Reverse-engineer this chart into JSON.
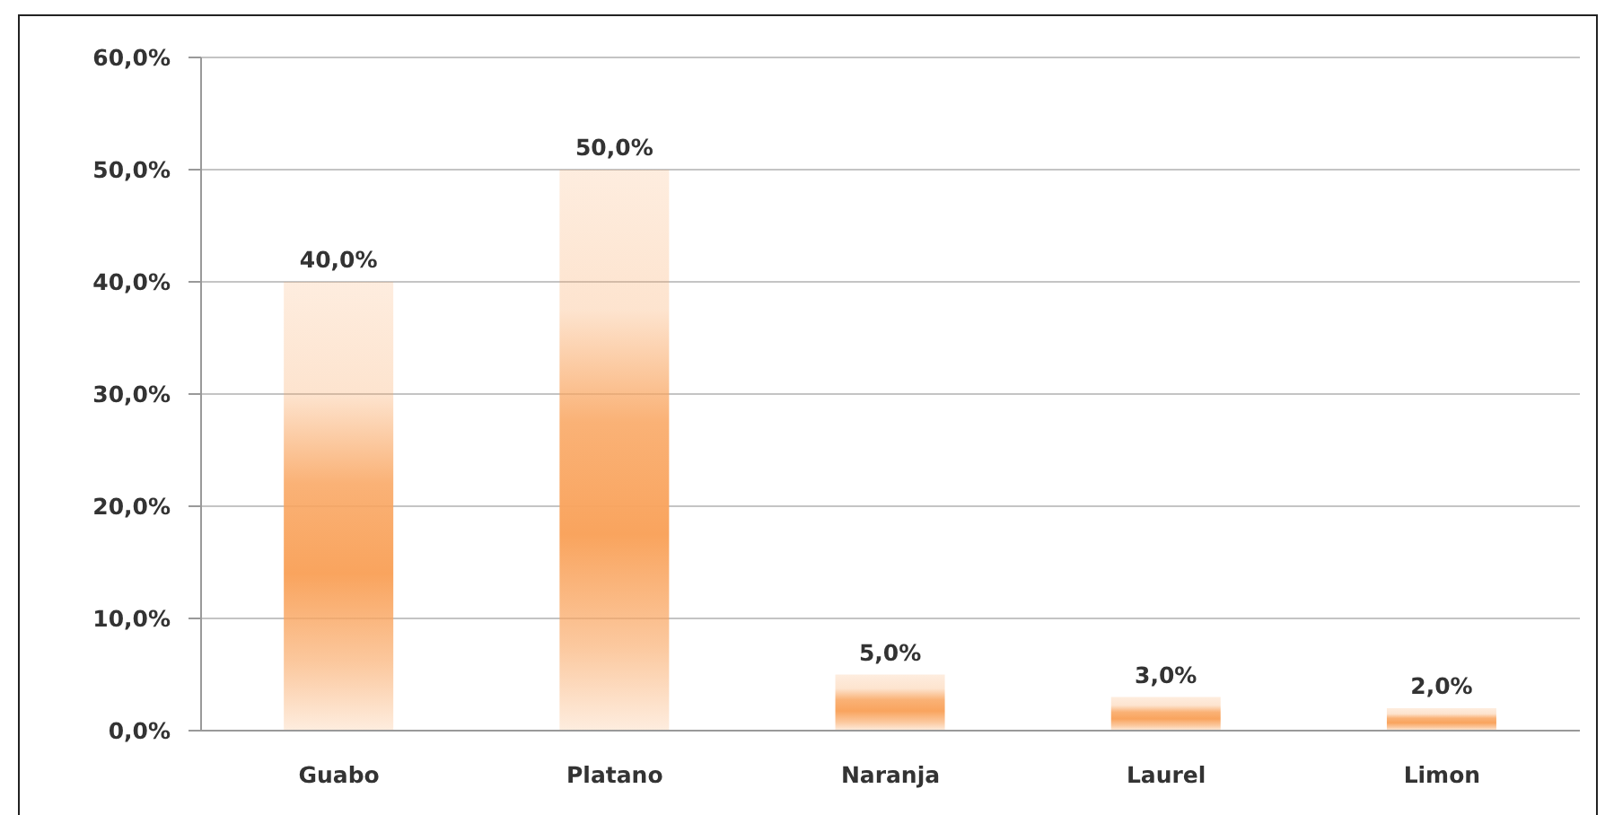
{
  "chart_data": {
    "type": "bar",
    "categories": [
      "Guabo",
      "Platano",
      "Naranja",
      "Laurel",
      "Limon"
    ],
    "values": [
      40,
      50,
      5,
      3,
      2
    ],
    "value_labels": [
      "40,0%",
      "50,0%",
      "5,0%",
      "3,0%",
      "2,0%"
    ],
    "color": "#f9a45e",
    "ylim": [
      0,
      60
    ],
    "yticks": [
      {
        "value": 0,
        "label": "0,0%"
      },
      {
        "value": 10,
        "label": "10,0%"
      },
      {
        "value": 20,
        "label": "20,0%"
      },
      {
        "value": 30,
        "label": "30,0%"
      },
      {
        "value": 40,
        "label": "40,0%"
      },
      {
        "value": 50,
        "label": "50,0%"
      },
      {
        "value": 60,
        "label": "60,0%"
      }
    ],
    "grid": "y"
  }
}
